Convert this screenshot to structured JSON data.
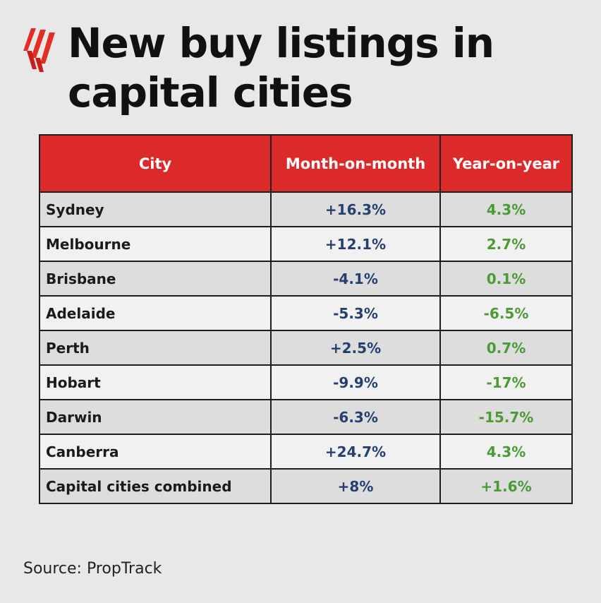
{
  "title": "New buy listings in capital cities",
  "logo_icon": "sbs-logo-icon",
  "colors": {
    "header_bg": "#dc2a2a",
    "header_text": "#ffffff",
    "month_on_month": "#253f6e",
    "year_on_year": "#4a9a35",
    "row_odd": "#dddddd",
    "row_even": "#f1f1f1",
    "background": "#e8e8e8"
  },
  "chart_data": {
    "type": "table",
    "title": "New buy listings in capital cities",
    "columns": [
      "City",
      "Month-on-month",
      "Year-on-year"
    ],
    "rows": [
      [
        "Sydney",
        "+16.3%",
        "4.3%"
      ],
      [
        "Melbourne",
        "+12.1%",
        "2.7%"
      ],
      [
        "Brisbane",
        "-4.1%",
        "0.1%"
      ],
      [
        "Adelaide",
        "-5.3%",
        "-6.5%"
      ],
      [
        "Perth",
        "+2.5%",
        "0.7%"
      ],
      [
        "Hobart",
        "-9.9%",
        "-17%"
      ],
      [
        "Darwin",
        "-6.3%",
        "-15.7%"
      ],
      [
        "Canberra",
        "+24.7%",
        "4.3%"
      ],
      [
        "Capital cities combined",
        "+8%",
        "+1.6%"
      ]
    ]
  },
  "source": "Source: PropTrack"
}
